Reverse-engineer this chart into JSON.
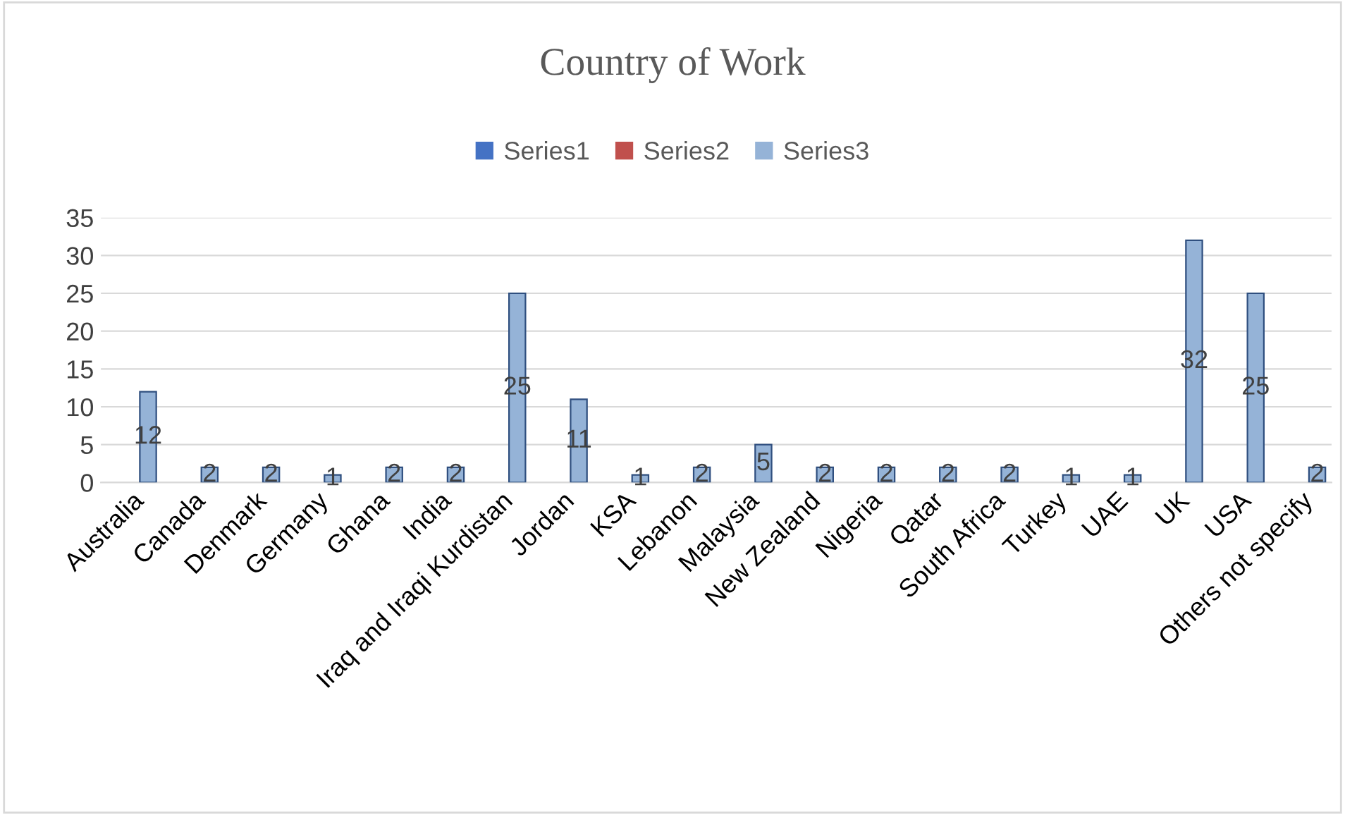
{
  "chart_data": {
    "type": "bar",
    "title": "Country of Work",
    "categories": [
      "Australia",
      "Canada",
      "Denmark",
      "Germany",
      "Ghana",
      "India",
      "Iraq and Iraqi Kurdistan",
      "Jordan",
      "KSA",
      "Lebanon",
      "Malaysia",
      "New Zealand",
      "Nigeria",
      "Qatar",
      "South Africa",
      "Turkey",
      "UAE",
      "UK",
      "USA",
      "Others not specify"
    ],
    "series": [
      {
        "name": "Series1",
        "color": "#4472c4",
        "values": [
          null,
          null,
          null,
          null,
          null,
          null,
          null,
          null,
          null,
          null,
          null,
          null,
          null,
          null,
          null,
          null,
          null,
          null,
          null,
          null
        ]
      },
      {
        "name": "Series2",
        "color": "#c0504d",
        "values": [
          null,
          null,
          null,
          null,
          null,
          null,
          null,
          null,
          null,
          null,
          null,
          null,
          null,
          null,
          null,
          null,
          null,
          null,
          null,
          null
        ]
      },
      {
        "name": "Series3",
        "color": "#95b3d7",
        "values": [
          12,
          2,
          2,
          1,
          2,
          2,
          25,
          11,
          1,
          2,
          5,
          2,
          2,
          2,
          2,
          1,
          1,
          32,
          25,
          2
        ]
      }
    ],
    "ylim": [
      0,
      35
    ],
    "yticks": [
      0,
      5,
      10,
      15,
      20,
      25,
      30,
      35
    ],
    "grid": "y",
    "legend": "top",
    "data_labels": true
  }
}
